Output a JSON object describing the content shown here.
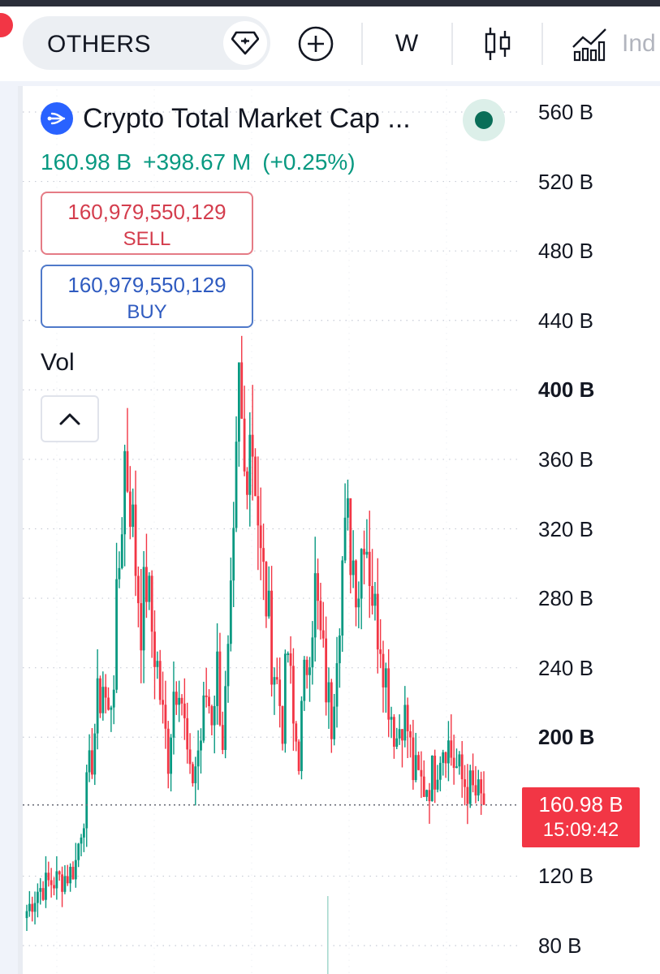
{
  "toolbar": {
    "symbol": "OTHERS",
    "interval": "W",
    "indicators_label": "Ind",
    "icons": [
      "diamond-icon",
      "plus-circle-icon",
      "candlestick-icon",
      "indicators-icon"
    ]
  },
  "legend": {
    "title": "Crypto Total Market Cap ...",
    "price": "160.98 B",
    "change": "+398.67 M",
    "change_pct": "(+0.25%)",
    "sell_value": "160,979,550,129",
    "sell_label": "SELL",
    "buy_value": "160,979,550,129",
    "buy_label": "BUY",
    "volume_label": "Vol"
  },
  "colors": {
    "up": "#089981",
    "down": "#f23645",
    "accent": "#2962ff",
    "status": "#0a6e58"
  },
  "price_tag": {
    "price": "160.98 B",
    "countdown": "15:09:42"
  },
  "chart_data": {
    "type": "candlestick",
    "interval": "W",
    "unit": "B",
    "ylim": [
      75,
      575
    ],
    "y_ticks": [
      {
        "value": 560,
        "label": "560 B",
        "bold": false
      },
      {
        "value": 520,
        "label": "520 B",
        "bold": false
      },
      {
        "value": 480,
        "label": "480 B",
        "bold": false
      },
      {
        "value": 440,
        "label": "440 B",
        "bold": false
      },
      {
        "value": 400,
        "label": "400 B",
        "bold": true
      },
      {
        "value": 360,
        "label": "360 B",
        "bold": false
      },
      {
        "value": 320,
        "label": "320 B",
        "bold": false
      },
      {
        "value": 280,
        "label": "280 B",
        "bold": false
      },
      {
        "value": 240,
        "label": "240 B",
        "bold": false
      },
      {
        "value": 200,
        "label": "200 B",
        "bold": true
      },
      {
        "value": 120,
        "label": "120 B",
        "bold": false
      },
      {
        "value": 80,
        "label": "80 B",
        "bold": false
      }
    ],
    "last_price": 160.98,
    "grid": true,
    "close_path": [
      [
        0,
        100
      ],
      [
        4,
        112
      ],
      [
        8,
        116
      ],
      [
        12,
        118
      ],
      [
        16,
        122
      ],
      [
        18,
        128
      ],
      [
        20,
        150
      ],
      [
        22,
        168
      ],
      [
        24,
        190
      ],
      [
        26,
        218
      ],
      [
        28,
        232
      ],
      [
        30,
        210
      ],
      [
        32,
        240
      ],
      [
        34,
        300
      ],
      [
        36,
        362
      ],
      [
        38,
        340
      ],
      [
        40,
        300
      ],
      [
        42,
        268
      ],
      [
        44,
        290
      ],
      [
        46,
        262
      ],
      [
        48,
        240
      ],
      [
        50,
        210
      ],
      [
        52,
        190
      ],
      [
        54,
        228
      ],
      [
        56,
        240
      ],
      [
        58,
        205
      ],
      [
        60,
        172
      ],
      [
        62,
        185
      ],
      [
        64,
        200
      ],
      [
        66,
        225
      ],
      [
        68,
        215
      ],
      [
        70,
        240
      ],
      [
        72,
        200
      ],
      [
        74,
        240
      ],
      [
        76,
        300
      ],
      [
        78,
        400
      ],
      [
        80,
        350
      ],
      [
        82,
        385
      ],
      [
        84,
        355
      ],
      [
        86,
        300
      ],
      [
        88,
        280
      ],
      [
        90,
        250
      ],
      [
        92,
        230
      ],
      [
        94,
        210
      ],
      [
        96,
        250
      ],
      [
        98,
        205
      ],
      [
        100,
        192
      ],
      [
        102,
        230
      ],
      [
        104,
        260
      ],
      [
        106,
        285
      ],
      [
        108,
        255
      ],
      [
        110,
        230
      ],
      [
        112,
        210
      ],
      [
        114,
        260
      ],
      [
        116,
        300
      ],
      [
        118,
        320
      ],
      [
        120,
        302
      ],
      [
        122,
        290
      ],
      [
        124,
        328
      ],
      [
        126,
        300
      ],
      [
        128,
        270
      ],
      [
        130,
        262
      ],
      [
        132,
        235
      ],
      [
        134,
        215
      ],
      [
        136,
        200
      ],
      [
        138,
        215
      ],
      [
        140,
        205
      ],
      [
        142,
        180
      ],
      [
        144,
        175
      ],
      [
        146,
        172
      ],
      [
        148,
        175
      ],
      [
        150,
        182
      ],
      [
        152,
        195
      ],
      [
        154,
        200
      ],
      [
        156,
        190
      ],
      [
        158,
        182
      ],
      [
        160,
        175
      ],
      [
        162,
        172
      ],
      [
        164,
        168
      ],
      [
        166,
        165
      ],
      [
        168,
        161
      ]
    ]
  }
}
